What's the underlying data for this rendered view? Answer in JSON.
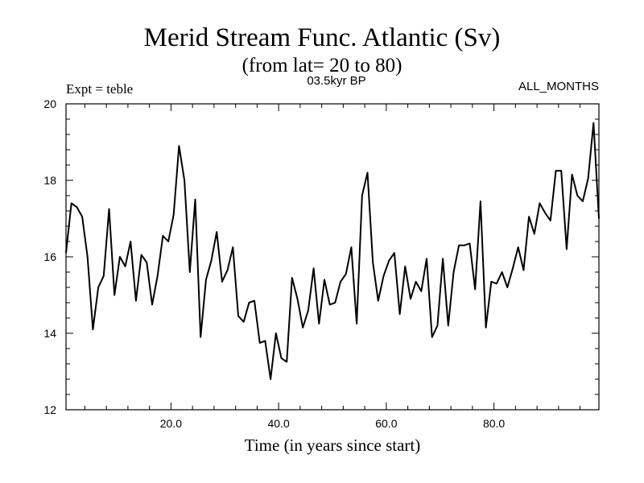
{
  "chart_data": {
    "type": "line",
    "title": "Merid Stream Func. Atlantic (Sv)",
    "subtitle": "(from lat= 20 to 80)",
    "left_label": "Expt = teble",
    "center_label": "03.5kyr BP",
    "right_label": "ALL_MONTHS",
    "xlabel": "Time (in years since start)",
    "ylabel": "",
    "xlim": [
      0.5,
      99.5
    ],
    "ylim": [
      12,
      20
    ],
    "x_ticks": [
      20,
      40,
      60,
      80
    ],
    "x_tick_labels": [
      "20.0",
      "40.0",
      "60.0",
      "80.0"
    ],
    "y_ticks": [
      12,
      14,
      16,
      18,
      20
    ],
    "y_tick_labels": [
      "12",
      "14",
      "16",
      "18",
      "20"
    ],
    "grid": false,
    "series": [
      {
        "name": "Merid Stream Func. Atlantic",
        "x": [
          0.5,
          1.5,
          2.5,
          3.5,
          4.5,
          5.5,
          6.5,
          7.5,
          8.5,
          9.5,
          10.5,
          11.5,
          12.5,
          13.5,
          14.5,
          15.5,
          16.5,
          17.5,
          18.5,
          19.5,
          20.5,
          21.5,
          22.5,
          23.5,
          24.5,
          25.5,
          26.5,
          27.5,
          28.5,
          29.5,
          30.5,
          31.5,
          32.5,
          33.5,
          34.5,
          35.5,
          36.5,
          37.5,
          38.5,
          39.5,
          40.5,
          41.5,
          42.5,
          43.5,
          44.5,
          45.5,
          46.5,
          47.5,
          48.5,
          49.5,
          50.5,
          51.5,
          52.5,
          53.5,
          54.5,
          55.5,
          56.5,
          57.5,
          58.5,
          59.5,
          60.5,
          61.5,
          62.5,
          63.5,
          64.5,
          65.5,
          66.5,
          67.5,
          68.5,
          69.5,
          70.5,
          71.5,
          72.5,
          73.5,
          74.5,
          75.5,
          76.5,
          77.5,
          78.5,
          79.5,
          80.5,
          81.5,
          82.5,
          83.5,
          84.5,
          85.5,
          86.5,
          87.5,
          88.5,
          89.5,
          90.5,
          91.5,
          92.5,
          93.5,
          94.5,
          95.5,
          96.5,
          97.5,
          98.5,
          99.5
        ],
        "y": [
          16.1,
          17.4,
          17.3,
          17.05,
          16.0,
          14.1,
          15.2,
          15.5,
          17.25,
          15.0,
          16.0,
          15.75,
          16.4,
          14.85,
          16.05,
          15.85,
          14.75,
          15.5,
          16.55,
          16.4,
          17.1,
          18.9,
          18.0,
          15.6,
          17.5,
          13.9,
          15.4,
          15.9,
          16.65,
          15.35,
          15.65,
          16.25,
          14.45,
          14.3,
          14.8,
          14.85,
          13.75,
          13.8,
          12.8,
          14.0,
          13.35,
          13.25,
          15.45,
          14.9,
          14.15,
          14.6,
          15.7,
          14.25,
          15.4,
          14.75,
          14.8,
          15.35,
          15.55,
          16.25,
          14.25,
          17.6,
          18.2,
          15.85,
          14.85,
          15.5,
          15.9,
          16.1,
          14.5,
          15.75,
          14.9,
          15.35,
          15.1,
          15.95,
          13.9,
          14.2,
          15.95,
          14.2,
          15.6,
          16.3,
          16.3,
          16.35,
          15.15,
          17.45,
          14.15,
          15.35,
          15.3,
          15.6,
          15.2,
          15.7,
          16.25,
          15.65,
          17.05,
          16.6,
          17.4,
          17.15,
          16.95,
          18.25,
          18.25,
          16.2,
          18.15,
          17.6,
          17.45,
          18.05,
          19.5,
          17.0
        ]
      }
    ]
  }
}
